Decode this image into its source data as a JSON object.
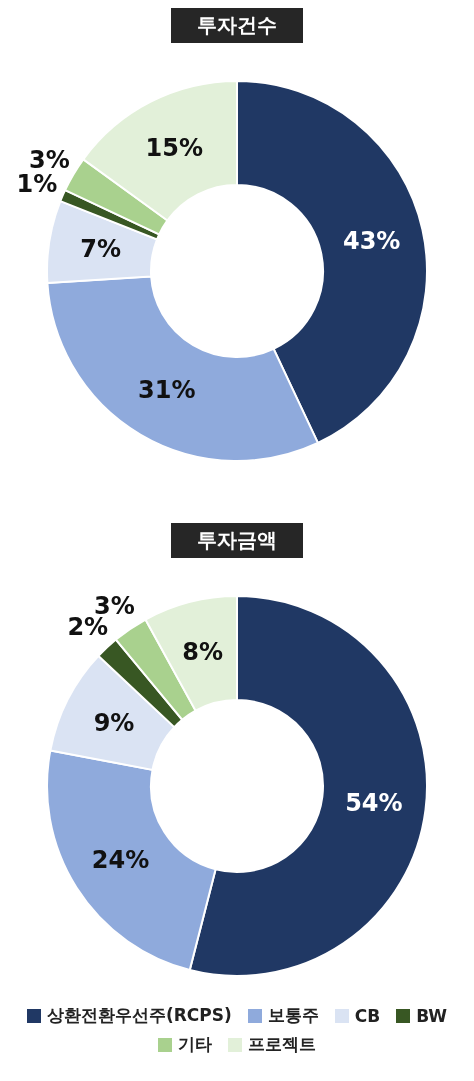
{
  "chart_data": [
    {
      "type": "donut",
      "title": "투자건수",
      "categories": [
        null,
        null,
        null,
        null,
        null,
        null
      ],
      "values": [
        43,
        31,
        7,
        1,
        3,
        15
      ],
      "colors": [
        "#203864",
        "#8faadc",
        "#dae3f3",
        "#385723",
        "#a9d18e",
        "#e2f0d9"
      ],
      "value_labels": [
        "43%",
        "31%",
        "7%",
        "1%",
        "3%",
        "15%"
      ],
      "legend": false
    },
    {
      "type": "donut",
      "title": "투자금액",
      "categories": [
        "상환전환우선주(RCPS)",
        "보통주",
        "CB",
        "BW",
        "기타",
        "프로젝트"
      ],
      "values": [
        54,
        24,
        9,
        2,
        3,
        8
      ],
      "colors": [
        "#203864",
        "#8faadc",
        "#dae3f3",
        "#385723",
        "#a9d18e",
        "#e2f0d9"
      ],
      "value_labels": [
        "54%",
        "24%",
        "9%",
        "2%",
        "3%",
        "8%"
      ],
      "legend": "bottom"
    }
  ]
}
